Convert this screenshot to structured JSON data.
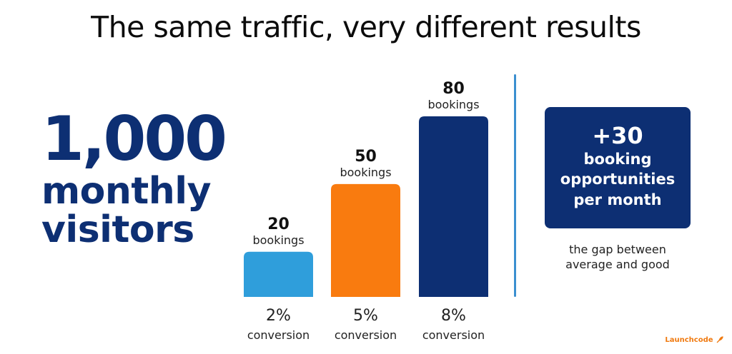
{
  "title": "The same traffic, very different results",
  "visitors": {
    "number": "1,000",
    "line1": "monthly",
    "line2": "visitors"
  },
  "chart_data": {
    "type": "bar",
    "categories": [
      "2%",
      "5%",
      "8%"
    ],
    "values": [
      20,
      50,
      80
    ],
    "value_unit": "bookings",
    "category_caption": "conversion",
    "colors": [
      "#2f9edb",
      "#f97b0f",
      "#0d2f73"
    ],
    "ylim": [
      0,
      80
    ],
    "grid": false,
    "title": "",
    "xlabel": "",
    "ylabel": ""
  },
  "callout": {
    "big": "+30",
    "line1": "booking",
    "line2": "opportunities",
    "line3": "per month"
  },
  "gap_note": {
    "line1": "the gap between",
    "line2": "average and good"
  },
  "logo": {
    "text": "Launchcode",
    "icon": "rocket-icon"
  }
}
